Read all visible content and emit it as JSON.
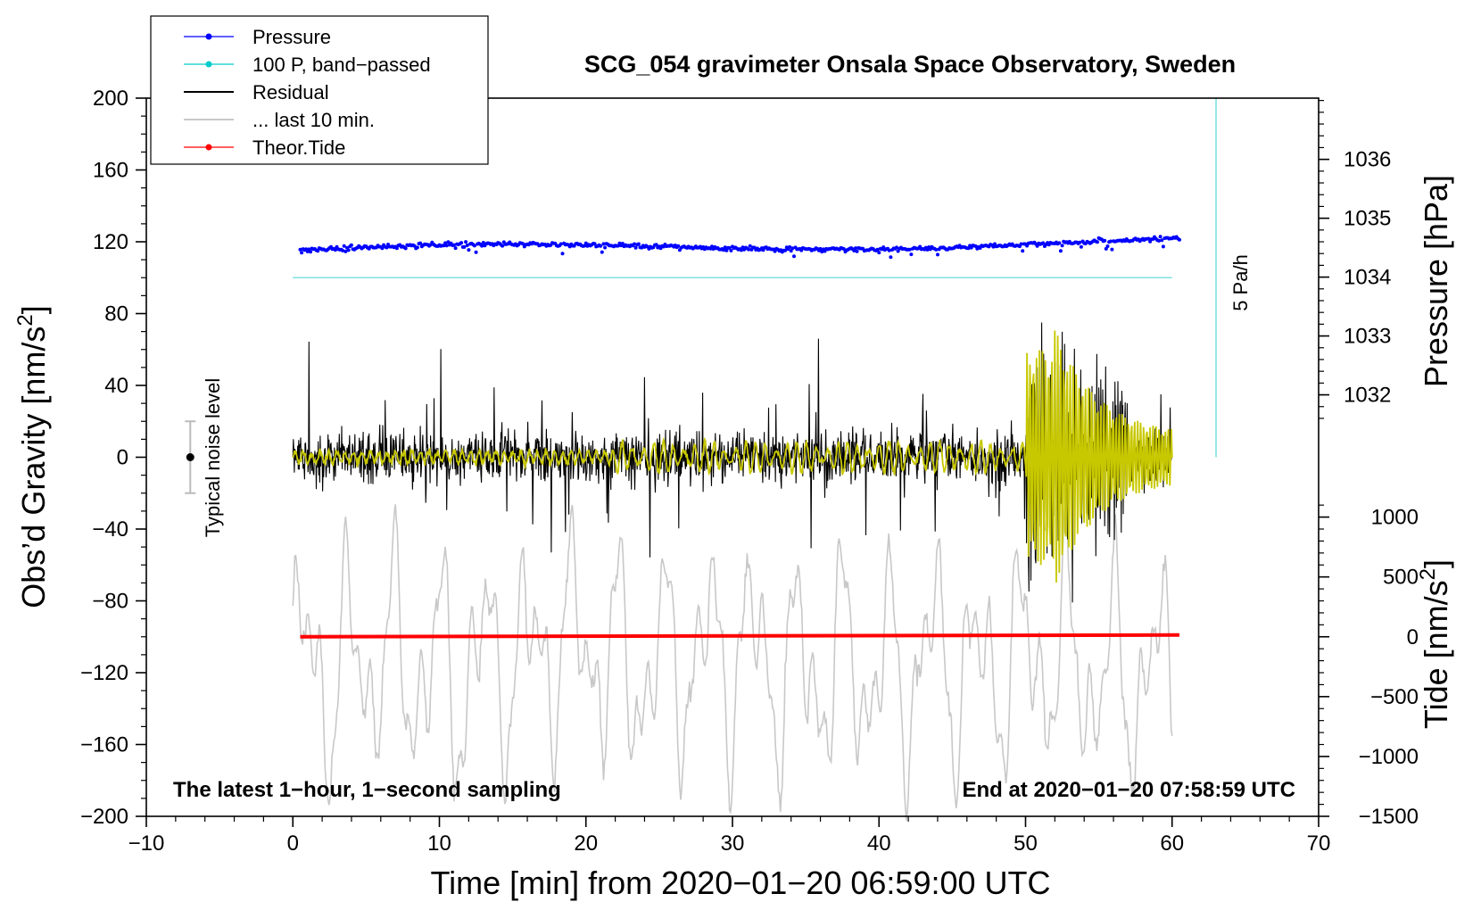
{
  "chart_data": {
    "type": "line",
    "title": "SCG_054 gravimeter Onsala Space Observatory, Sweden",
    "xlabel": "Time [min] from 2020−01−20 06:59:00 UTC",
    "ylabel_left": "Obs’d Gravity [nm/s²]",
    "ylabel_left_main": "Obs’d Gravity [nm/s",
    "ylabel_left_sup": "2",
    "ylabel_left_end": "]",
    "ylabel_right_pressure": "Pressure [hPa]",
    "ylabel_right_tide": "Tide [nm/s²]",
    "ylabel_right_tide_main": "Tide [nm/s",
    "ylabel_right_tide_sup": "2",
    "ylabel_right_tide_end": "]",
    "xlim": [
      -10,
      70
    ],
    "ylim": [
      -200,
      200
    ],
    "x_ticks": [
      -10,
      0,
      10,
      20,
      30,
      40,
      50,
      60,
      70
    ],
    "x_tick_labels": [
      "−10",
      "0",
      "10",
      "20",
      "30",
      "40",
      "50",
      "60",
      "70"
    ],
    "y_ticks": [
      200,
      160,
      120,
      80,
      40,
      0,
      -40,
      -80,
      -120,
      -160,
      -200
    ],
    "y_tick_labels": [
      "200",
      "160",
      "120",
      "80",
      "40",
      "0",
      "−40",
      "−80",
      "−120",
      "−160",
      "−200"
    ],
    "pressure_ticks": [
      1036,
      1035,
      1034,
      1033,
      1032
    ],
    "pressure_tick_labels": [
      "1036",
      "1035",
      "1034",
      "1033",
      "1032"
    ],
    "pressure_axis": {
      "value_at_120": 1034.6,
      "units_per_40": 1.22
    },
    "tide_ticks": [
      1000,
      500,
      0,
      -500,
      -1000,
      -1500
    ],
    "tide_tick_labels": [
      "1000",
      "500",
      "0",
      "−500",
      "−1000",
      "−1500"
    ],
    "tide_axis": {
      "value_at_minus100": 0,
      "units_per_40": 600
    },
    "legend": {
      "placement": "top-left",
      "entries": [
        {
          "label": "Pressure",
          "color": "#0000ff",
          "marker": true
        },
        {
          "label": "100 P, band−passed",
          "color": "#00cccc",
          "marker": true
        },
        {
          "label": "Residual",
          "color": "#000000",
          "marker": false
        },
        {
          "label": "... last 10 min.",
          "color": "#c8c8c8",
          "marker": false
        },
        {
          "label": "Theor.Tide",
          "color": "#ff0000",
          "marker": true
        }
      ]
    },
    "series": [
      {
        "name": "Pressure",
        "color": "#0000ff",
        "x_range": [
          0.5,
          60.5
        ],
        "y_start": 115,
        "y_end": 120
      },
      {
        "name": "100 P, band−passed",
        "color": "#80e0e0",
        "x_range": [
          0,
          60
        ],
        "y_const": 100
      },
      {
        "name": "Residual",
        "color": "#000000",
        "x_range": [
          0,
          60
        ],
        "y_center": 0
      },
      {
        "name": "Residual (filtered)",
        "color": "#c8c800",
        "x_range": [
          0,
          60
        ],
        "y_center": 0
      },
      {
        "name": "... last 10 min.",
        "color": "#c8c8c8",
        "x_range": [
          0,
          60
        ],
        "y_center": -115
      },
      {
        "name": "Theor.Tide",
        "color": "#ff0000",
        "x_range": [
          0.5,
          60.5
        ],
        "y_start": -100,
        "y_end": -99
      }
    ],
    "rate_bar": {
      "label": "5 Pa/h",
      "x": 63,
      "y_top": 200,
      "y_bottom": 0,
      "color": "#80e0e0"
    },
    "noise_bar": {
      "label": "Typical noise level",
      "x": -7,
      "y_center": 0,
      "y_half": 20
    },
    "annotations": {
      "bottom_left": "The latest 1−hour, 1−second sampling",
      "bottom_right": "End at 2020−01−20 07:58:59 UTC"
    }
  }
}
